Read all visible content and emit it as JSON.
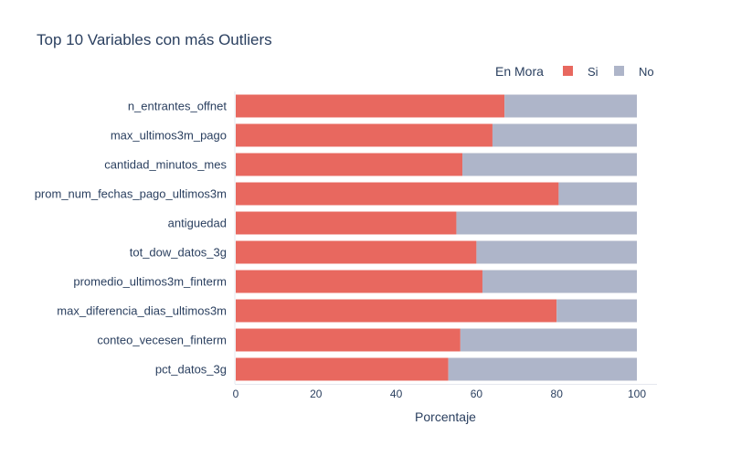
{
  "chart_data": {
    "type": "bar",
    "orientation": "horizontal",
    "stacked": true,
    "title": "Top 10 Variables con más Outliers",
    "xlabel": "Porcentaje",
    "ylabel": "",
    "xlim": [
      0,
      100
    ],
    "xticks": [
      0,
      20,
      40,
      60,
      80,
      100
    ],
    "legend_title": "En Mora",
    "legend_position": "top-right",
    "categories": [
      "n_entrantes_offnet",
      "max_ultimos3m_pago",
      "cantidad_minutos_mes",
      "prom_num_fechas_pago_ultimos3m",
      "antiguedad",
      "tot_dow_datos_3g",
      "promedio_ultimos3m_finterm",
      "max_diferencia_dias_ultimos3m",
      "conteo_vecesen_finterm",
      "pct_datos_3g"
    ],
    "series": [
      {
        "name": "Si",
        "color": "#e8685f",
        "values": [
          67,
          64,
          56.5,
          80.5,
          55,
          60,
          61.5,
          80,
          56,
          53
        ]
      },
      {
        "name": "No",
        "color": "#aeb5c9",
        "values": [
          33,
          36,
          43.5,
          19.5,
          45,
          40,
          38.5,
          20,
          44,
          47
        ]
      }
    ]
  }
}
